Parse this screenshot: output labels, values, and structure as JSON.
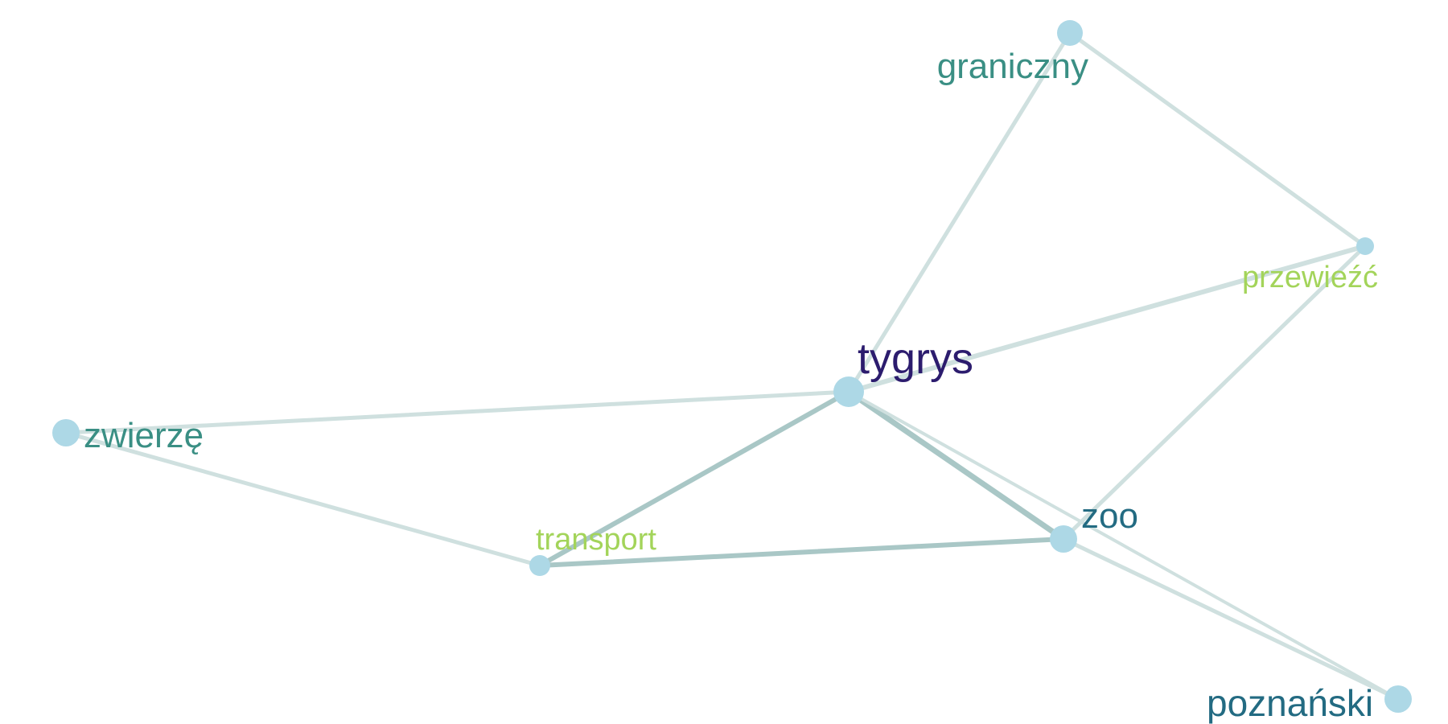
{
  "graph": {
    "node_color": "#add8e6",
    "nodes": [
      {
        "id": "tygrys",
        "label": "tygrys",
        "label_color": "#2c1c6e"
      },
      {
        "id": "graniczny",
        "label": "graniczny",
        "label_color": "#3a8f84"
      },
      {
        "id": "przewiezc",
        "label": "przewieźć",
        "label_color": "#a3d45a"
      },
      {
        "id": "zwierze",
        "label": "zwierzę",
        "label_color": "#3a8f84"
      },
      {
        "id": "transport",
        "label": "transport",
        "label_color": "#a3d45a"
      },
      {
        "id": "zoo",
        "label": "zoo",
        "label_color": "#236b82"
      },
      {
        "id": "poznanski",
        "label": "poznański",
        "label_color": "#236b82"
      }
    ],
    "edges": [
      {
        "source": "graniczny",
        "target": "tygrys",
        "color": "#cfe0df"
      },
      {
        "source": "graniczny",
        "target": "przewiezc",
        "color": "#cfe0df"
      },
      {
        "source": "tygrys",
        "target": "przewiezc",
        "color": "#cfe0df"
      },
      {
        "source": "tygrys",
        "target": "zwierze",
        "color": "#cfe0df"
      },
      {
        "source": "tygrys",
        "target": "transport",
        "color": "#a9c7c6"
      },
      {
        "source": "tygrys",
        "target": "zoo",
        "color": "#a9c7c6"
      },
      {
        "source": "tygrys",
        "target": "poznanski",
        "color": "#cfe0df"
      },
      {
        "source": "zwierze",
        "target": "transport",
        "color": "#cfe0df"
      },
      {
        "source": "transport",
        "target": "zoo",
        "color": "#a9c7c6"
      },
      {
        "source": "zoo",
        "target": "przewiezc",
        "color": "#cfe0df"
      },
      {
        "source": "zoo",
        "target": "poznanski",
        "color": "#cfe0df"
      }
    ]
  }
}
